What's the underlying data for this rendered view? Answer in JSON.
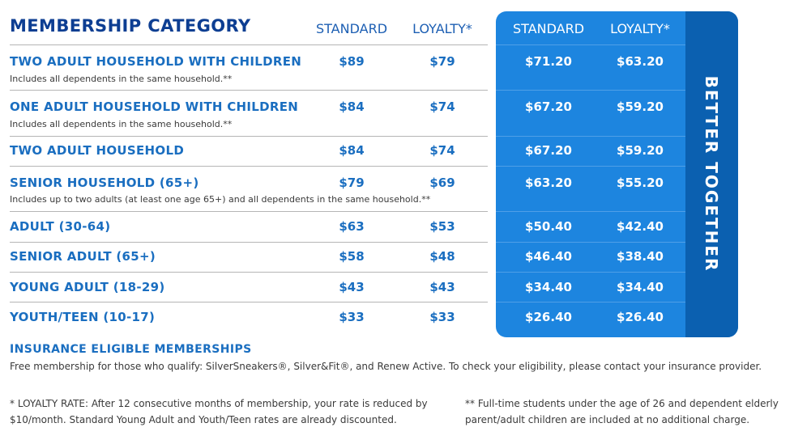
{
  "header": {
    "category_label": "MEMBERSHIP CATEGORY",
    "standard_label": "STANDARD",
    "loyalty_label": "LOYALTY*"
  },
  "panel": {
    "standard_label": "STANDARD",
    "loyalty_label": "LOYALTY*",
    "side_label": "BETTER TOGETHER"
  },
  "rows": [
    {
      "name": "TWO ADULT HOUSEHOLD WITH CHILDREN",
      "note": "Includes all dependents in the same household.**",
      "standard": "$89",
      "loyalty": "$79",
      "together_standard": "$71.20",
      "together_loyalty": "$63.20"
    },
    {
      "name": "ONE ADULT HOUSEHOLD WITH CHILDREN",
      "note": "Includes all dependents in the same household.**",
      "standard": "$84",
      "loyalty": "$74",
      "together_standard": "$67.20",
      "together_loyalty": "$59.20"
    },
    {
      "name": "TWO ADULT HOUSEHOLD",
      "note": "",
      "standard": "$84",
      "loyalty": "$74",
      "together_standard": "$67.20",
      "together_loyalty": "$59.20"
    },
    {
      "name": "SENIOR HOUSEHOLD (65+)",
      "note": "Includes up to two adults (at least one age 65+) and all dependents in the same household.**",
      "standard": "$79",
      "loyalty": "$69",
      "together_standard": "$63.20",
      "together_loyalty": "$55.20"
    },
    {
      "name": "ADULT (30-64)",
      "note": "",
      "standard": "$63",
      "loyalty": "$53",
      "together_standard": "$50.40",
      "together_loyalty": "$42.40"
    },
    {
      "name": "SENIOR ADULT (65+)",
      "note": "",
      "standard": "$58",
      "loyalty": "$48",
      "together_standard": "$46.40",
      "together_loyalty": "$38.40"
    },
    {
      "name": "YOUNG ADULT (18-29)",
      "note": "",
      "standard": "$43",
      "loyalty": "$43",
      "together_standard": "$34.40",
      "together_loyalty": "$34.40"
    },
    {
      "name": "YOUTH/TEEN (10-17)",
      "note": "",
      "standard": "$33",
      "loyalty": "$33",
      "together_standard": "$26.40",
      "together_loyalty": "$26.40"
    }
  ],
  "insurance": {
    "title": "INSURANCE ELIGIBLE MEMBERSHIPS",
    "text": "Free membership for those who qualify: SilverSneakers®, Silver&Fit®, and Renew Active. To check your eligibility, please contact your insurance provider."
  },
  "footnotes": {
    "loyalty_line1": "* LOYALTY RATE: After 12 consecutive months of membership, your rate is reduced by",
    "loyalty_line2": "$10/month. Standard Young Adult and Youth/Teen rates are already discounted.",
    "students_line1": "** Full-time students under the age of 26 and dependent elderly",
    "students_line2": "parent/adult children are included at no additional charge."
  },
  "colors": {
    "title_blue": "#0d3e92",
    "text_blue": "#1a6ec0",
    "panel_blue": "#1d85df",
    "panel_dark_blue": "#0b60b0"
  }
}
